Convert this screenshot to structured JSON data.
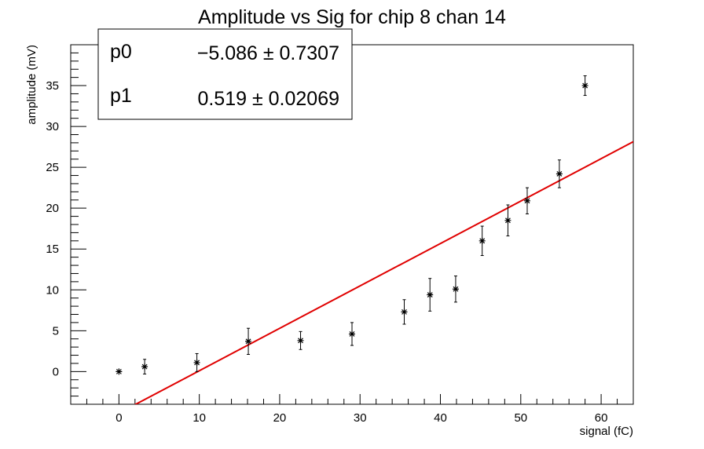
{
  "chart_data": {
    "type": "scatter",
    "title": "Amplitude vs Sig for chip 8 chan 14",
    "xlabel": "signal (fC)",
    "ylabel": "amplitude (mV)",
    "xlim": [
      -6,
      64
    ],
    "ylim": [
      -4,
      40
    ],
    "xticks": [
      0,
      10,
      20,
      30,
      40,
      50,
      60
    ],
    "yticks": [
      0,
      5,
      10,
      15,
      20,
      25,
      30,
      35
    ],
    "grid": false,
    "points": [
      {
        "x": 0.0,
        "y": 0.0,
        "err": 0.0
      },
      {
        "x": 3.2,
        "y": 0.6,
        "err": 0.9
      },
      {
        "x": 9.7,
        "y": 1.1,
        "err": 1.1
      },
      {
        "x": 16.1,
        "y": 3.7,
        "err": 1.6
      },
      {
        "x": 22.6,
        "y": 3.8,
        "err": 1.1
      },
      {
        "x": 29.0,
        "y": 4.6,
        "err": 1.4
      },
      {
        "x": 35.5,
        "y": 7.3,
        "err": 1.5
      },
      {
        "x": 38.7,
        "y": 9.4,
        "err": 2.0
      },
      {
        "x": 41.9,
        "y": 10.1,
        "err": 1.6
      },
      {
        "x": 45.2,
        "y": 16.0,
        "err": 1.8
      },
      {
        "x": 48.4,
        "y": 18.5,
        "err": 1.9
      },
      {
        "x": 50.8,
        "y": 20.9,
        "err": 1.6
      },
      {
        "x": 54.8,
        "y": 24.2,
        "err": 1.7
      },
      {
        "x": 58.0,
        "y": 35.0,
        "err": 1.2
      }
    ],
    "fit": {
      "p0": -5.086,
      "p1": 0.519,
      "color": "#e00000",
      "x_range": [
        0.5,
        64
      ]
    },
    "stats_box": {
      "rows": [
        {
          "label": "p0",
          "value": "−5.086 ± 0.7307"
        },
        {
          "label": "p1",
          "value": "0.519 ± 0.02069"
        }
      ]
    }
  }
}
